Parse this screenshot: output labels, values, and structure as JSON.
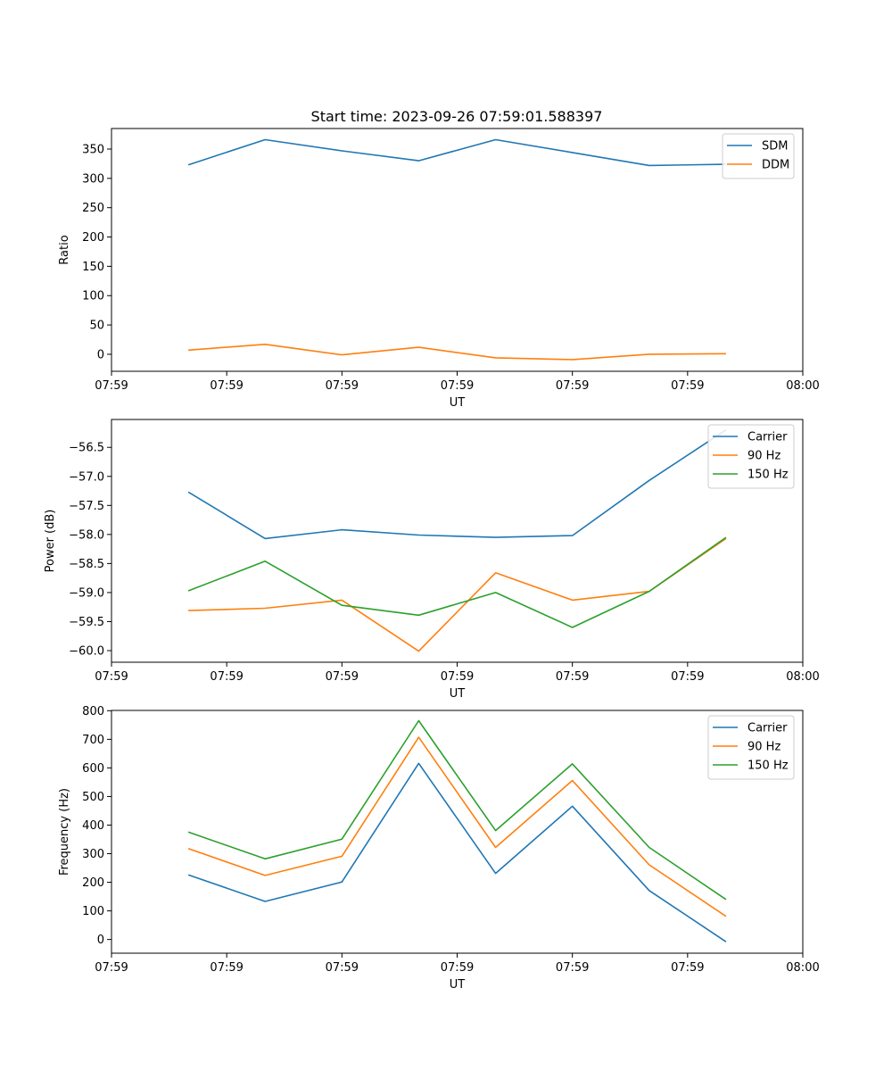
{
  "title": "Start time: 2023-09-26 07:59:01.588397",
  "colors": {
    "blue": "#1f77b4",
    "orange": "#ff7f0e",
    "green": "#2ca02c"
  },
  "chart_data": [
    {
      "type": "line",
      "xlabel": "UT",
      "ylabel": "Ratio",
      "x_ticks": [
        "07:59",
        "07:59",
        "07:59",
        "07:59",
        "07:59",
        "07:59",
        "08:00"
      ],
      "y_ticks": [
        "0",
        "50",
        "100",
        "150",
        "200",
        "250",
        "300",
        "350"
      ],
      "ylim": [
        -29,
        385
      ],
      "x": [
        1,
        2,
        3,
        4,
        5,
        6,
        7,
        8
      ],
      "xlim": [
        0.0,
        9.0
      ],
      "x_tick_values": [
        0.0,
        1.5,
        3.0,
        4.5,
        6.0,
        7.5,
        9.0
      ],
      "series": [
        {
          "name": "SDM",
          "color": "#1f77b4",
          "values": [
            323,
            366,
            347,
            330,
            366,
            344,
            322,
            324
          ]
        },
        {
          "name": "DDM",
          "color": "#ff7f0e",
          "values": [
            7,
            17,
            -1,
            12,
            -6,
            -9,
            0,
            1
          ]
        }
      ],
      "legend": "top-right"
    },
    {
      "type": "line",
      "xlabel": "UT",
      "ylabel": "Power (dB)",
      "x_ticks": [
        "07:59",
        "07:59",
        "07:59",
        "07:59",
        "07:59",
        "07:59",
        "08:00"
      ],
      "y_ticks": [
        "−60.0",
        "−59.5",
        "−59.0",
        "−58.5",
        "−58.0",
        "−57.5",
        "−57.0",
        "−56.5"
      ],
      "ylim": [
        -60.2,
        -56.02
      ],
      "x": [
        1,
        2,
        3,
        4,
        5,
        6,
        7,
        8
      ],
      "xlim": [
        0.0,
        9.0
      ],
      "x_tick_values": [
        0.0,
        1.5,
        3.0,
        4.5,
        6.0,
        7.5,
        9.0
      ],
      "series": [
        {
          "name": "Carrier",
          "color": "#1f77b4",
          "values": [
            -57.27,
            -58.07,
            -57.92,
            -58.01,
            -58.05,
            -58.02,
            -57.07,
            -56.2
          ]
        },
        {
          "name": "90 Hz",
          "color": "#ff7f0e",
          "values": [
            -59.31,
            -59.27,
            -59.13,
            -60.01,
            -58.66,
            -59.13,
            -58.98,
            -58.07
          ]
        },
        {
          "name": "150 Hz",
          "color": "#2ca02c",
          "values": [
            -58.97,
            -58.46,
            -59.22,
            -59.39,
            -59.0,
            -59.6,
            -58.98,
            -58.05
          ]
        }
      ],
      "legend": "top-right"
    },
    {
      "type": "line",
      "xlabel": "UT",
      "ylabel": "Frequency (Hz)",
      "x_ticks": [
        "07:59",
        "07:59",
        "07:59",
        "07:59",
        "07:59",
        "07:59",
        "08:00"
      ],
      "y_ticks": [
        "0",
        "100",
        "200",
        "300",
        "400",
        "500",
        "600",
        "700",
        "800"
      ],
      "ylim": [
        -48,
        801
      ],
      "x": [
        1,
        2,
        3,
        4,
        5,
        6,
        7,
        8
      ],
      "xlim": [
        0.0,
        9.0
      ],
      "x_tick_values": [
        0.0,
        1.5,
        3.0,
        4.5,
        6.0,
        7.5,
        9.0
      ],
      "series": [
        {
          "name": "Carrier",
          "color": "#1f77b4",
          "values": [
            226,
            133,
            201,
            616,
            231,
            466,
            171,
            -8
          ]
        },
        {
          "name": "90 Hz",
          "color": "#ff7f0e",
          "values": [
            318,
            224,
            291,
            707,
            322,
            556,
            261,
            81
          ]
        },
        {
          "name": "150 Hz",
          "color": "#2ca02c",
          "values": [
            376,
            282,
            351,
            765,
            381,
            614,
            322,
            140
          ]
        }
      ],
      "legend": "top-right"
    }
  ]
}
